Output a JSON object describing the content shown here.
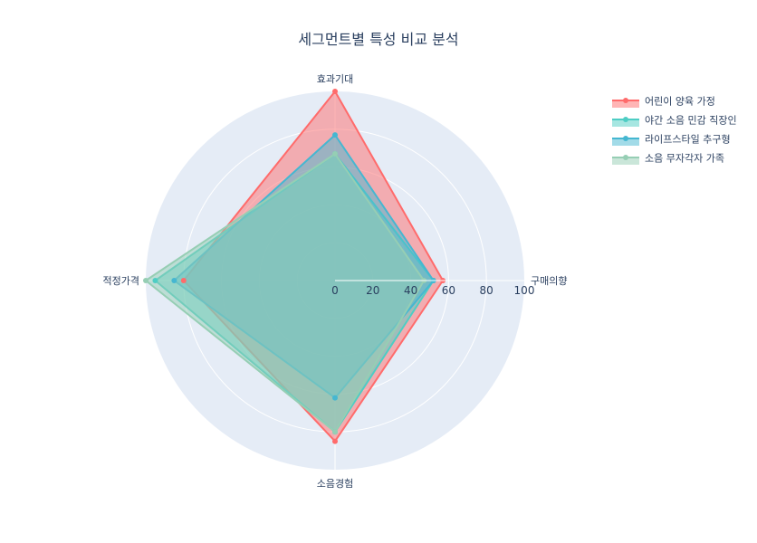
{
  "chart_data": {
    "type": "radar",
    "title": "세그먼트별 특성 비교 분석",
    "axes": [
      "효과기대",
      "구매의향",
      "소음경험",
      "적정가격"
    ],
    "radial_range": [
      0,
      100
    ],
    "radial_ticks": [
      "0",
      "20",
      "40",
      "60",
      "80",
      "100"
    ],
    "grid": true,
    "legend_position": "top-right",
    "series": [
      {
        "name": "어린이 양육 가정",
        "values": [
          100,
          57,
          85,
          80
        ],
        "color": "#ff6b6b"
      },
      {
        "name": "야간 소음 민감 직장인",
        "values": [
          67,
          52,
          80,
          95
        ],
        "color": "#4ecdc4"
      },
      {
        "name": "라이프스타일 추구형",
        "values": [
          77,
          52,
          62,
          85
        ],
        "color": "#45b7d1"
      },
      {
        "name": "소음 무자각자 가족",
        "values": [
          67,
          47,
          80,
          100
        ],
        "color": "#96ceb4"
      }
    ]
  }
}
